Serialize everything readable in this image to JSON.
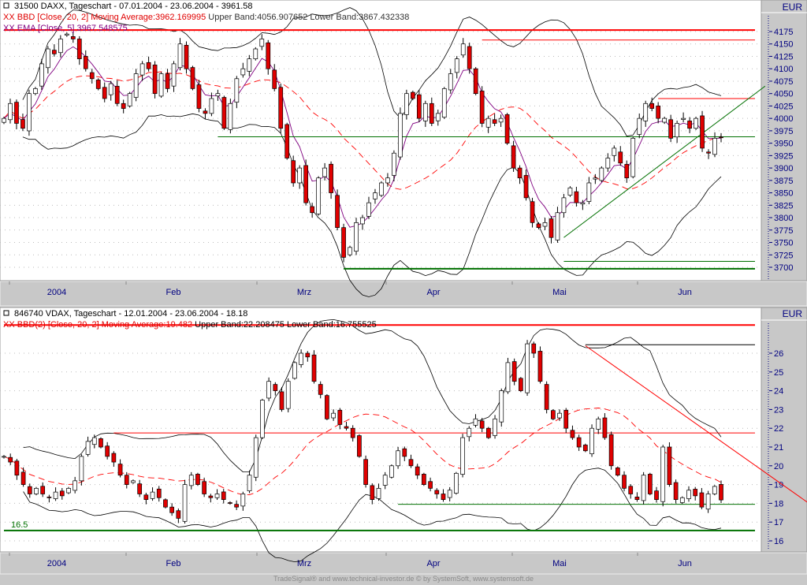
{
  "colors": {
    "up": "#ffffff",
    "down": "#e00000",
    "band": "#000000",
    "ma": "#ff0000",
    "ema": "#800080",
    "support": "#007000",
    "resistance": "#ff0000",
    "axis_text": "#000080"
  },
  "footer": "TradeSignal® and www.technical-investor.de © by  SystemSoft, www.systemsoft.de",
  "chart_data": [
    {
      "type": "candlestick",
      "title": "31500  DAXX, Tageschart - 07.01.2004 - 23.06.2004 - 3961.58",
      "legend": [
        {
          "text_main": "XX BBD [Close, 20, 2] Moving Average:3962.169995",
          "text_rest": " Upper Band:4056.907652 Lower Band:3867.432338"
        },
        {
          "text_main": "XX EMA [Close, 5] 3967.548575",
          "text_rest": ""
        }
      ],
      "currency": "EUR",
      "ylim": [
        3685,
        4200
      ],
      "yticks": [
        "4175",
        "4150",
        "4125",
        "4100",
        "4075",
        "4050",
        "4025",
        "4000",
        "3975",
        "3950",
        "3925",
        "3900",
        "3875",
        "3850",
        "3825",
        "3800",
        "3775",
        "3750",
        "3725",
        "3700"
      ],
      "months": [
        "2004",
        "Feb",
        "Mrz",
        "Apr",
        "Mai",
        "Jun"
      ],
      "closes": [
        4000,
        4030,
        3990,
        3980,
        4050,
        4060,
        4110,
        4140,
        4130,
        4160,
        4170,
        4160,
        4120,
        4100,
        4080,
        4060,
        4040,
        4070,
        4030,
        4020,
        4050,
        4090,
        4110,
        4100,
        4050,
        4090,
        4060,
        4110,
        4150,
        4100,
        4060,
        4020,
        4010,
        4040,
        4050,
        3980,
        4030,
        4080,
        4100,
        4120,
        4140,
        4160,
        4100,
        4060,
        3980,
        3920,
        3870,
        3900,
        3830,
        3810,
        3880,
        3900,
        3850,
        3780,
        3720,
        3740,
        3790,
        3800,
        3830,
        3850,
        3870,
        3880,
        3930,
        4010,
        4050,
        4040,
        4000,
        4030,
        3990,
        4010,
        4060,
        4090,
        4120,
        4150,
        4100,
        4050,
        3990,
        4000,
        3990,
        4000,
        3950,
        3900,
        3880,
        3840,
        3790,
        3780,
        3790,
        3760,
        3810,
        3840,
        3860,
        3830,
        3830,
        3870,
        3880,
        3900,
        3920,
        3940,
        3910,
        3880,
        3960,
        4000,
        4030,
        4020,
        4000,
        4000,
        3960,
        3990,
        4000,
        3980,
        4000,
        3940,
        3930,
        3960,
        3961.58
      ],
      "hlines": [
        {
          "value": 4178,
          "from_index": 0,
          "color": "resistance",
          "width": 2
        },
        {
          "value": 4158,
          "from_index": 76,
          "color": "resistance",
          "width": 1
        },
        {
          "value": 4040,
          "from_index": 104,
          "color": "resistance",
          "width": 1
        },
        {
          "value": 3963,
          "from_index": 34,
          "color": "support",
          "width": 1
        },
        {
          "value": 3712,
          "from_index": 89,
          "color": "support",
          "width": 1
        },
        {
          "value": 3697,
          "from_index": 54,
          "color": "support",
          "width": 2
        }
      ],
      "trendlines": [
        {
          "from": [
            89,
            3760
          ],
          "to": [
            121,
            4065
          ],
          "color": "support"
        }
      ],
      "indicators": {
        "bollinger": [
          20,
          2
        ],
        "ema": 5
      }
    },
    {
      "type": "candlestick",
      "title": "846740  VDAX, Tageschart - 12.01.2004 - 23.06.2004 - 18.18",
      "legend": [
        {
          "text_main": "XX BBD(2) [Close, 20, 2] Moving Average:19.482",
          "text_rest": " Upper Band:22.208475 Lower Band:16.755525"
        }
      ],
      "currency": "EUR",
      "ylim": [
        15.4,
        27.7
      ],
      "yticks": [
        "26",
        "25",
        "24",
        "23",
        "22",
        "21",
        "20",
        "19",
        "18",
        "17",
        "16"
      ],
      "months": [
        "2004",
        "Feb",
        "Mrz",
        "Apr",
        "Mai",
        "Jun"
      ],
      "label_165": "16.5",
      "closes": [
        20.5,
        20.2,
        19.5,
        19,
        18.5,
        18.8,
        18.5,
        18.3,
        18.6,
        18.4,
        18.8,
        19.2,
        20.5,
        21.3,
        21.5,
        21,
        20.5,
        20.2,
        19.5,
        19,
        19.2,
        18.5,
        18.2,
        18.6,
        18.3,
        17.8,
        17.5,
        17.2,
        19,
        19.5,
        19,
        18.5,
        18.3,
        18.5,
        18.2,
        18,
        17.8,
        18.5,
        19.5,
        21.5,
        23.5,
        24.5,
        24,
        23,
        24.5,
        25.5,
        26,
        25.8,
        24.5,
        23.8,
        22.5,
        22.8,
        22.2,
        22,
        21.5,
        20.5,
        19,
        18.2,
        18.8,
        19.5,
        20,
        20.8,
        20.5,
        20,
        19.5,
        19,
        18.8,
        18.5,
        18.2,
        18.7,
        19.6,
        21.5,
        22,
        22.5,
        22,
        21.5,
        22.5,
        24,
        25.5,
        24.5,
        24,
        26.5,
        26,
        24.5,
        23,
        22.5,
        22.8,
        22,
        21.5,
        21,
        20.8,
        22,
        22.5,
        21.5,
        20,
        19.5,
        18.8,
        18.5,
        18.2,
        19.5,
        18.5,
        18.2,
        21,
        19,
        18.2,
        18.3,
        18.7,
        18.4,
        17.8,
        18.5,
        18.9,
        18.18
      ],
      "hlines": [
        {
          "value": 27.5,
          "from_index": 0,
          "color": "resistance",
          "width": 2
        },
        {
          "value": 26.45,
          "from_index": 90,
          "color": "band",
          "width": 1
        },
        {
          "value": 21.75,
          "from_index": 17,
          "color": "resistance",
          "width": 1
        },
        {
          "value": 17.95,
          "from_index": 61,
          "color": "support",
          "width": 1
        },
        {
          "value": 16.55,
          "from_index": 0,
          "color": "support",
          "width": 2
        }
      ],
      "trendlines": [
        {
          "from": [
            90,
            26.4
          ],
          "to": [
            125,
            17.9
          ],
          "color": "resistance"
        }
      ],
      "indicators": {
        "bollinger": [
          20,
          2
        ]
      }
    }
  ]
}
